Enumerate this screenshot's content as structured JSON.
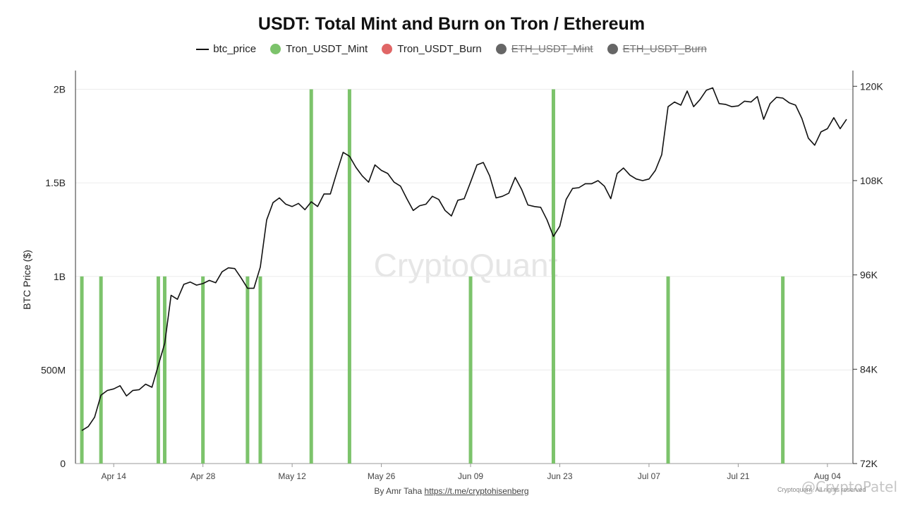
{
  "chart_data": {
    "type": "bar+line",
    "title": "USDT: Total Mint and Burn on Tron / Ethereum",
    "legend": [
      {
        "name": "btc_price",
        "kind": "line",
        "color": "#111111",
        "active": true
      },
      {
        "name": "Tron_USDT_Mint",
        "kind": "dot",
        "color": "#7cc36b",
        "active": true
      },
      {
        "name": "Tron_USDT_Burn",
        "kind": "dot",
        "color": "#e06666",
        "active": true
      },
      {
        "name": "ETH_USDT_Mint",
        "kind": "dot",
        "color": "#666666",
        "active": false
      },
      {
        "name": "ETH_USDT_Burn",
        "kind": "dot",
        "color": "#666666",
        "active": false
      }
    ],
    "legend_position": "top-center",
    "ylabel_left": "BTC Price ($)",
    "left_axis": {
      "ticks": [
        "0",
        "500M",
        "1B",
        "1.5B",
        "2B"
      ],
      "range": [
        0,
        2100000000
      ]
    },
    "right_axis": {
      "ticks": [
        "72K",
        "84K",
        "96K",
        "108K",
        "120K"
      ],
      "range": [
        72000,
        122000
      ]
    },
    "x_ticks": [
      "Apr 14",
      "Apr 28",
      "May 12",
      "May 26",
      "Jun 09",
      "Jun 23",
      "Jul 07",
      "Jul 21",
      "Aug 04"
    ],
    "x_range": [
      "2025-04-08",
      "2025-08-08"
    ],
    "grid": true,
    "series": [
      {
        "name": "Tron_USDT_Mint",
        "type": "bar",
        "color": "#7cc36b",
        "x": [
          "2025-04-09",
          "2025-04-12",
          "2025-04-21",
          "2025-04-22",
          "2025-04-28",
          "2025-05-05",
          "2025-05-07",
          "2025-05-15",
          "2025-05-21",
          "2025-06-09",
          "2025-06-22",
          "2025-07-10",
          "2025-07-28"
        ],
        "values": [
          1000000000,
          1000000000,
          1000000000,
          1000000000,
          1000000000,
          1000000000,
          1000000000,
          2000000000,
          2000000000,
          1000000000,
          2000000000,
          1000000000,
          1000000000
        ]
      },
      {
        "name": "btc_price",
        "type": "line",
        "color": "#111111",
        "x": [
          "2025-04-09",
          "2025-04-10",
          "2025-04-11",
          "2025-04-12",
          "2025-04-13",
          "2025-04-14",
          "2025-04-15",
          "2025-04-16",
          "2025-04-17",
          "2025-04-18",
          "2025-04-19",
          "2025-04-20",
          "2025-04-21",
          "2025-04-22",
          "2025-04-23",
          "2025-04-24",
          "2025-04-25",
          "2025-04-26",
          "2025-04-27",
          "2025-04-28",
          "2025-04-29",
          "2025-04-30",
          "2025-05-01",
          "2025-05-02",
          "2025-05-03",
          "2025-05-04",
          "2025-05-05",
          "2025-05-06",
          "2025-05-07",
          "2025-05-08",
          "2025-05-09",
          "2025-05-10",
          "2025-05-11",
          "2025-05-12",
          "2025-05-13",
          "2025-05-14",
          "2025-05-15",
          "2025-05-16",
          "2025-05-17",
          "2025-05-18",
          "2025-05-19",
          "2025-05-20",
          "2025-05-21",
          "2025-05-22",
          "2025-05-23",
          "2025-05-24",
          "2025-05-25",
          "2025-05-26",
          "2025-05-27",
          "2025-05-28",
          "2025-05-29",
          "2025-05-30",
          "2025-05-31",
          "2025-06-01",
          "2025-06-02",
          "2025-06-03",
          "2025-06-04",
          "2025-06-05",
          "2025-06-06",
          "2025-06-07",
          "2025-06-08",
          "2025-06-09",
          "2025-06-10",
          "2025-06-11",
          "2025-06-12",
          "2025-06-13",
          "2025-06-14",
          "2025-06-15",
          "2025-06-16",
          "2025-06-17",
          "2025-06-18",
          "2025-06-19",
          "2025-06-20",
          "2025-06-21",
          "2025-06-22",
          "2025-06-23",
          "2025-06-24",
          "2025-06-25",
          "2025-06-26",
          "2025-06-27",
          "2025-06-28",
          "2025-06-29",
          "2025-06-30",
          "2025-07-01",
          "2025-07-02",
          "2025-07-03",
          "2025-07-04",
          "2025-07-05",
          "2025-07-06",
          "2025-07-07",
          "2025-07-08",
          "2025-07-09",
          "2025-07-10",
          "2025-07-11",
          "2025-07-12",
          "2025-07-13",
          "2025-07-14",
          "2025-07-15",
          "2025-07-16",
          "2025-07-17",
          "2025-07-18",
          "2025-07-19",
          "2025-07-20",
          "2025-07-21",
          "2025-07-22",
          "2025-07-23",
          "2025-07-24",
          "2025-07-25",
          "2025-07-26",
          "2025-07-27",
          "2025-07-28",
          "2025-07-29",
          "2025-07-30",
          "2025-07-31",
          "2025-08-01",
          "2025-08-02",
          "2025-08-03",
          "2025-08-04",
          "2025-08-05",
          "2025-08-06",
          "2025-08-07"
        ],
        "values": [
          76200,
          76700,
          77900,
          80700,
          81300,
          81500,
          81900,
          80600,
          81300,
          81400,
          82100,
          81700,
          84500,
          87300,
          93400,
          92900,
          94800,
          95100,
          94700,
          94900,
          95300,
          95000,
          96400,
          96900,
          96800,
          95600,
          94300,
          94300,
          97000,
          103000,
          105200,
          105800,
          105000,
          104700,
          105100,
          104300,
          105300,
          104700,
          106300,
          106300,
          109000,
          111600,
          111100,
          109700,
          108600,
          107800,
          110000,
          109300,
          108900,
          107800,
          107300,
          105700,
          104200,
          104800,
          105000,
          106000,
          105600,
          104200,
          103500,
          105500,
          105700,
          107800,
          110000,
          110300,
          108600,
          105800,
          106000,
          106400,
          108400,
          106900,
          104900,
          104700,
          104600,
          103000,
          100900,
          102200,
          105600,
          107000,
          107100,
          107600,
          107600,
          108000,
          107300,
          105700,
          108900,
          109600,
          108700,
          108200,
          108000,
          108200,
          109300,
          111300,
          117400,
          118000,
          117600,
          119400,
          117400,
          118300,
          119500,
          119800,
          117800,
          117700,
          117400,
          117500,
          118100,
          118000,
          118700,
          115800,
          117800,
          118600,
          118500,
          117900,
          117600,
          115900,
          113400,
          112500,
          114200,
          114600,
          116000,
          114600,
          115800
        ]
      }
    ]
  },
  "watermark": "CryptoQuant",
  "credit": {
    "by": "By Amr Taha",
    "link": "https://t.me/cryptohisenberg"
  },
  "corner_mark": "@CryptoPatel",
  "small_mark": "Cryptoquant. All rights reserved"
}
